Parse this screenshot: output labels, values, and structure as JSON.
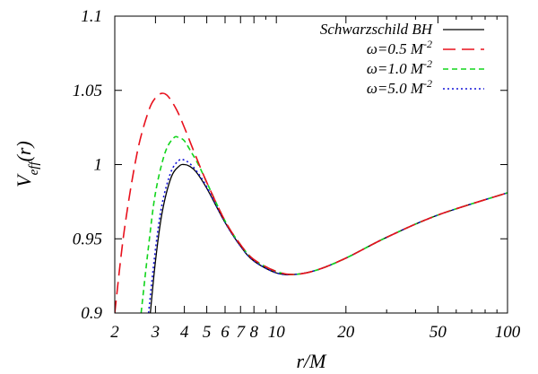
{
  "chart_data": {
    "type": "line",
    "title": "",
    "xlabel": "r/M",
    "ylabel": "V_eff(r)",
    "xscale": "log",
    "xlim": [
      2,
      100
    ],
    "ylim": [
      0.9,
      1.1
    ],
    "xticks": [
      {
        "value": 2,
        "label": "2"
      },
      {
        "value": 3,
        "label": "3"
      },
      {
        "value": 4,
        "label": "4"
      },
      {
        "value": 5,
        "label": "5"
      },
      {
        "value": 6,
        "label": "6"
      },
      {
        "value": 7,
        "label": "7"
      },
      {
        "value": 8,
        "label": "8"
      },
      {
        "value": 10,
        "label": "10"
      },
      {
        "value": 20,
        "label": "20"
      },
      {
        "value": 50,
        "label": "50"
      },
      {
        "value": 100,
        "label": "100"
      }
    ],
    "yticks": [
      {
        "value": 0.9,
        "label": "0.9"
      },
      {
        "value": 0.95,
        "label": "0.95"
      },
      {
        "value": 1.0,
        "label": "1"
      },
      {
        "value": 1.05,
        "label": "1.05"
      },
      {
        "value": 1.1,
        "label": "1.1"
      }
    ],
    "grid": false,
    "legend_position": "top-right",
    "series": [
      {
        "name": "Schwarzschild BH",
        "color": "#000000",
        "style": "solid",
        "x": [
          2.85,
          3.0,
          3.2,
          3.5,
          3.8,
          4.0,
          4.2,
          4.5,
          5.0,
          6.0,
          7.0,
          8.0,
          10.0,
          12.0,
          15.0,
          20.0,
          30.0,
          50.0,
          100.0
        ],
        "y": [
          0.9,
          0.935,
          0.967,
          0.991,
          0.999,
          1.0,
          0.999,
          0.995,
          0.984,
          0.961,
          0.945,
          0.935,
          0.927,
          0.926,
          0.929,
          0.937,
          0.951,
          0.966,
          0.981
        ]
      },
      {
        "name": "ω=0.5 M^-2",
        "color": "#e8101c",
        "style": "long-dash",
        "x": [
          2.0,
          2.2,
          2.5,
          2.8,
          3.0,
          3.2,
          3.4,
          3.7,
          4.0,
          4.5,
          5.0,
          6.0,
          7.0,
          8.0,
          10.0,
          12.0,
          15.0,
          20.0,
          30.0,
          50.0,
          100.0
        ],
        "y": [
          0.9,
          0.956,
          1.008,
          1.036,
          1.045,
          1.048,
          1.046,
          1.037,
          1.025,
          1.005,
          0.988,
          0.962,
          0.946,
          0.936,
          0.928,
          0.926,
          0.929,
          0.937,
          0.951,
          0.966,
          0.981
        ]
      },
      {
        "name": "ω=1.0 M^-2",
        "color": "#12d51c",
        "style": "dash",
        "x": [
          2.6,
          2.8,
          3.0,
          3.3,
          3.6,
          3.8,
          4.0,
          4.3,
          4.6,
          5.0,
          6.0,
          7.0,
          8.0,
          10.0,
          12.0,
          15.0,
          20.0,
          30.0,
          50.0,
          100.0
        ],
        "y": [
          0.9,
          0.945,
          0.981,
          1.008,
          1.018,
          1.018,
          1.016,
          1.008,
          1.0,
          0.988,
          0.962,
          0.946,
          0.936,
          0.928,
          0.926,
          0.929,
          0.937,
          0.951,
          0.966,
          0.981
        ]
      },
      {
        "name": "ω=5.0 M^-2",
        "color": "#1414d8",
        "style": "dot",
        "x": [
          2.8,
          3.0,
          3.2,
          3.5,
          3.8,
          4.0,
          4.2,
          4.5,
          5.0,
          6.0,
          7.0,
          8.0,
          10.0,
          12.0,
          15.0,
          20.0,
          30.0,
          50.0,
          100.0
        ],
        "y": [
          0.9,
          0.943,
          0.973,
          0.995,
          1.003,
          1.003,
          1.001,
          0.996,
          0.985,
          0.961,
          0.945,
          0.935,
          0.927,
          0.926,
          0.929,
          0.937,
          0.951,
          0.966,
          0.981
        ]
      }
    ]
  }
}
